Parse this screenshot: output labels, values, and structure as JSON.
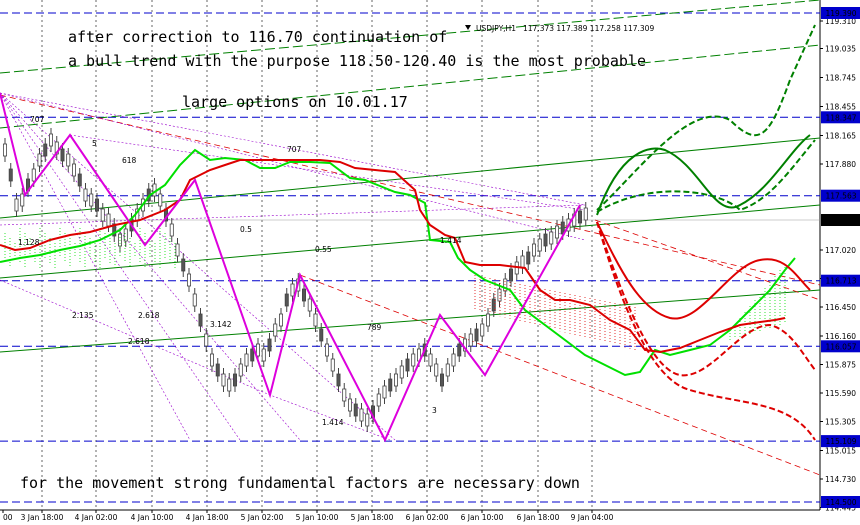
{
  "chart_data": {
    "type": "line",
    "symbol_label": "USDJPY,H1",
    "ohlc_readout": "117.373 117.389 117.258 117.309",
    "annotations": [
      "after correction to 116.70 continuation of",
      "a bull trend with the purpose 118.50-120.40 is the most probable",
      "large options on 10.01.17",
      "for the movement strong fundamental factors are necessary down"
    ],
    "x_ticks": [
      "00",
      "3 Jan 18:00",
      "4 Jan 02:00",
      "4 Jan 10:00",
      "4 Jan 18:00",
      "5 Jan 02:00",
      "5 Jan 10:00",
      "5 Jan 18:00",
      "6 Jan 02:00",
      "6 Jan 10:00",
      "6 Jan 18:00",
      "9 Jan 04:00"
    ],
    "y_ticks": [
      "119.310",
      "119.035",
      "118.745",
      "118.455",
      "118.165",
      "117.880",
      "117.020",
      "116.735",
      "116.450",
      "116.160",
      "115.875",
      "115.590",
      "115.305",
      "115.015",
      "114.730",
      "114.445"
    ],
    "y_range": [
      114.42,
      119.52
    ],
    "level_boxes": [
      {
        "label": "119.390",
        "value": 119.39
      },
      {
        "label": "118.347",
        "value": 118.347
      },
      {
        "label": "117.563",
        "value": 117.563
      },
      {
        "label": "117.320",
        "value": 117.32
      },
      {
        "label": "116.713",
        "value": 116.713
      },
      {
        "label": "116.057",
        "value": 116.057
      },
      {
        "label": "115.109",
        "value": 115.109
      },
      {
        "label": "114.500",
        "value": 114.5
      }
    ],
    "fib_labels": [
      "707",
      "618",
      "0.5",
      "0.55",
      "1.128",
      "2.135",
      "2.618",
      "3.142",
      "2.618",
      "789",
      "1.414",
      "3",
      "1.414",
      "707",
      "5"
    ],
    "colors": {
      "level_line": "#0000cc",
      "level_box": "#0000cc",
      "current_box": "#000000",
      "fast_line": "#00e000",
      "slow_line": "#dd0000",
      "zigzag": "#dd00dd",
      "trend": "#008000",
      "forecast_green": "#008000",
      "forecast_red": "#dd0000",
      "candle": "#444444"
    }
  }
}
